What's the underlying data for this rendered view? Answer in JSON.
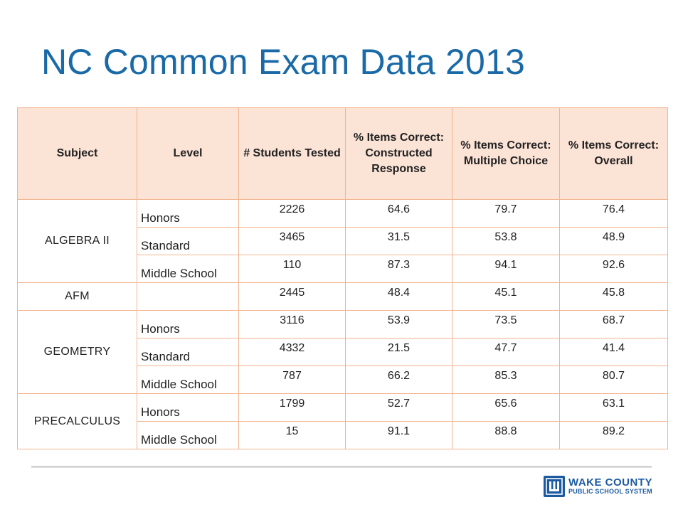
{
  "title": "NC Common Exam Data 2013",
  "table": {
    "headers": {
      "subject": "Subject",
      "level": "Level",
      "students": "# Students Tested",
      "constructed": "% Items Correct: Constructed Response",
      "multiple": "% Items Correct: Multiple Choice",
      "overall": "% Items Correct: Overall"
    },
    "groups": [
      {
        "subject": "ALGEBRA II",
        "rows": [
          {
            "level": "Honors",
            "students": "2226",
            "constructed": "64.6",
            "multiple": "79.7",
            "overall": "76.4"
          },
          {
            "level": "Standard",
            "students": "3465",
            "constructed": "31.5",
            "multiple": "53.8",
            "overall": "48.9"
          },
          {
            "level": "Middle School",
            "students": "110",
            "constructed": "87.3",
            "multiple": "94.1",
            "overall": "92.6"
          }
        ]
      },
      {
        "subject": "AFM",
        "rows": [
          {
            "level": "",
            "students": "2445",
            "constructed": "48.4",
            "multiple": "45.1",
            "overall": "45.8"
          }
        ]
      },
      {
        "subject": "GEOMETRY",
        "rows": [
          {
            "level": "Honors",
            "students": "3116",
            "constructed": "53.9",
            "multiple": "73.5",
            "overall": "68.7"
          },
          {
            "level": "Standard",
            "students": "4332",
            "constructed": "21.5",
            "multiple": "47.7",
            "overall": "41.4"
          },
          {
            "level": "Middle School",
            "students": "787",
            "constructed": "66.2",
            "multiple": "85.3",
            "overall": "80.7"
          }
        ]
      },
      {
        "subject": "PRECALCULUS",
        "rows": [
          {
            "level": "Honors",
            "students": "1799",
            "constructed": "52.7",
            "multiple": "65.6",
            "overall": "63.1"
          },
          {
            "level": "Middle School",
            "students": "15",
            "constructed": "91.1",
            "multiple": "88.8",
            "overall": "89.2"
          }
        ]
      }
    ]
  },
  "logo": {
    "line1": "WAKE COUNTY",
    "line2": "PUBLIC SCHOOL SYSTEM",
    "icon": "wcpss-logo-icon",
    "color": "#1b5aa0"
  },
  "colors": {
    "title": "#1a6aa8",
    "header_fill": "#fbe3d6",
    "border": "#f2b38f"
  }
}
